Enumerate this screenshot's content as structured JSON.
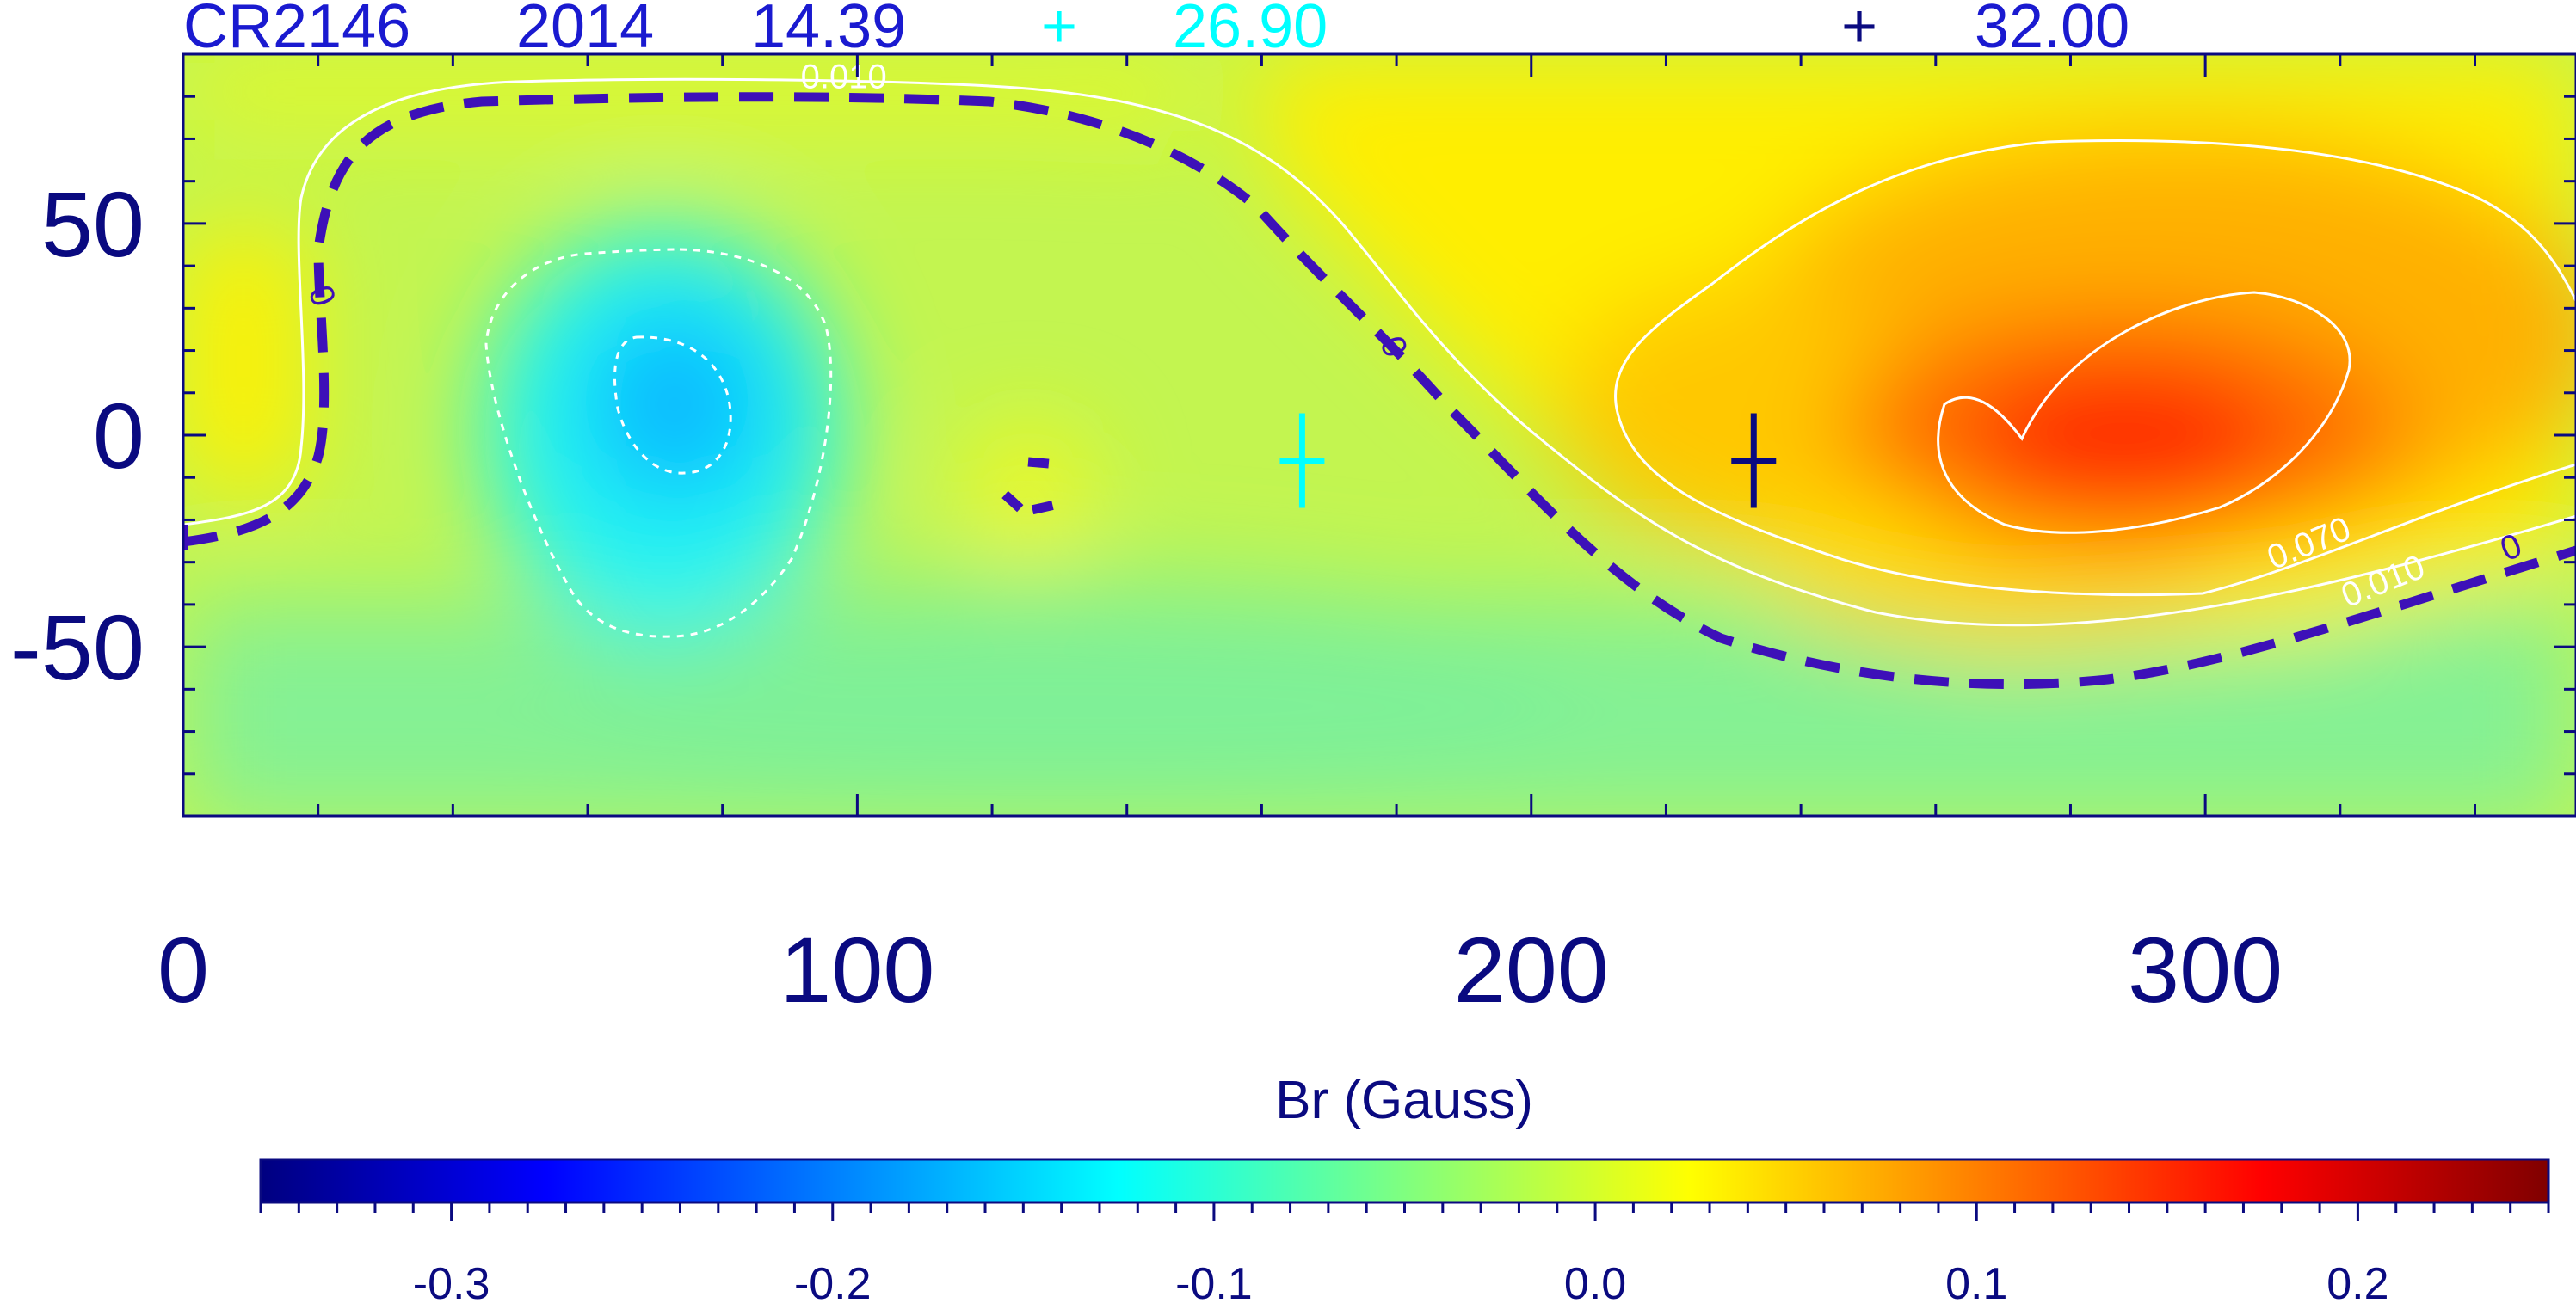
{
  "header": {
    "carrington": "CR2146",
    "year": "2014",
    "value1": "14.39",
    "plus1": "+",
    "value2": "26.90",
    "plus2": "+",
    "value3": "32.00"
  },
  "colors": {
    "text_dark": "#0a0a80",
    "text_blue": "#1a1ad0",
    "cyan": "#00ffff",
    "neutral_line": "#3d10b8",
    "contour": "#ffffff",
    "frame": "#0a0a80"
  },
  "chart_data": [
    {
      "type": "heatmap",
      "title": "",
      "xlabel": "",
      "ylabel": "",
      "xlim": [
        0,
        355
      ],
      "ylim": [
        -90,
        90
      ],
      "x_ticks": [
        0,
        100,
        200,
        300
      ],
      "y_ticks": [
        -50,
        0,
        50
      ],
      "x_tick_labels": [
        "0",
        "100",
        "200",
        "300"
      ],
      "y_tick_labels": [
        "-50",
        "0",
        "50"
      ],
      "grid": false,
      "field_features": [
        {
          "name": "negative minimum",
          "lon": 72,
          "lat": 8,
          "value": -0.22
        },
        {
          "name": "positive maximum",
          "lon": 288,
          "lat": 2,
          "value": 0.15
        }
      ],
      "contour_labels": [
        {
          "text": "0.010",
          "lon": 98,
          "lat": 82
        },
        {
          "text": "0",
          "lon": 19,
          "lat": 32
        },
        {
          "text": "0",
          "lon": 178,
          "lat": 20
        },
        {
          "text": "0.070",
          "lon": 316,
          "lat": -28
        },
        {
          "text": "0.010",
          "lon": 327,
          "lat": -37
        },
        {
          "text": "0",
          "lon": 346,
          "lat": -29
        }
      ],
      "markers": [
        {
          "name": "cyan cross",
          "lon": 166,
          "lat": -6,
          "color": "#00ffff"
        },
        {
          "name": "dark cross",
          "lon": 233,
          "lat": -6,
          "color": "#0a0a80"
        }
      ]
    },
    {
      "type": "heatmap",
      "title": "Br (Gauss)",
      "range": [
        -0.35,
        0.25
      ],
      "ticks": [
        -0.3,
        -0.2,
        -0.1,
        0.0,
        0.1,
        0.2
      ],
      "tick_labels": [
        "-0.3",
        "-0.2",
        "-0.1",
        "0.0",
        "0.1",
        "0.2"
      ],
      "colormap": [
        "#000080",
        "#0000ff",
        "#00ffff",
        "#ffff00",
        "#ff0000",
        "#800000"
      ]
    }
  ]
}
